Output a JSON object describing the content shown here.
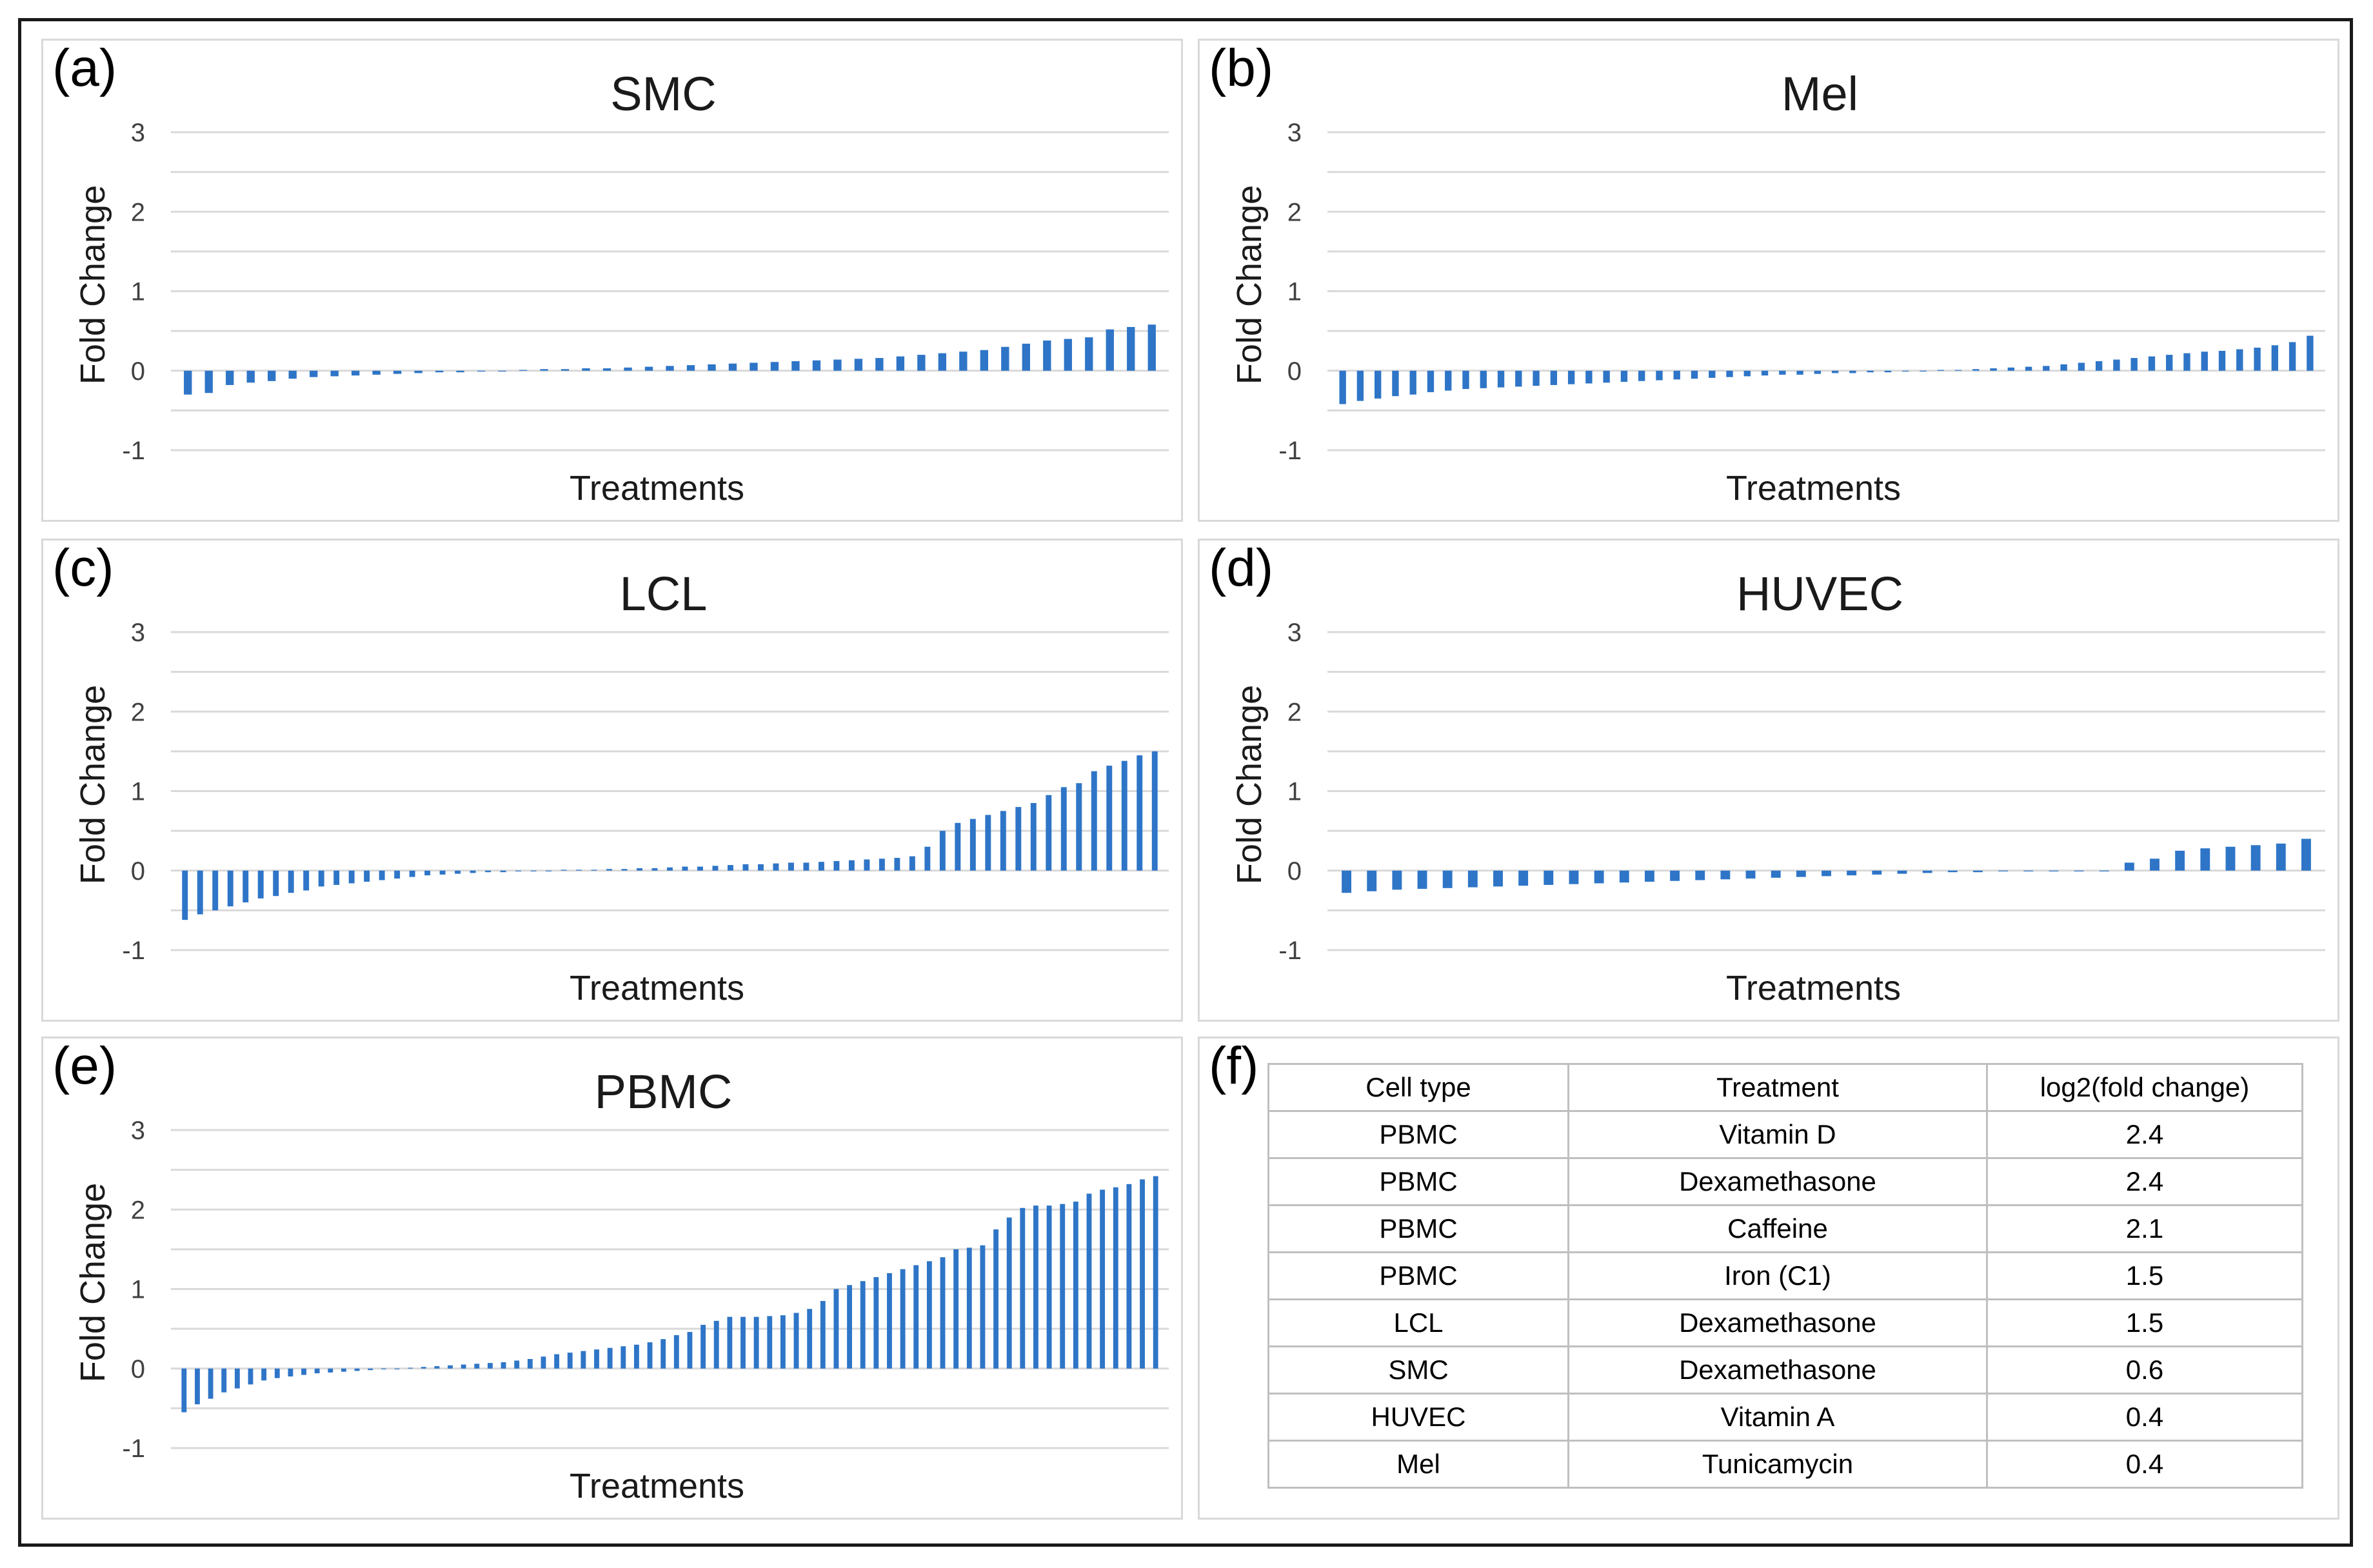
{
  "chart_data": [
    {
      "panel_label": "(a)",
      "type": "bar",
      "title": "SMC",
      "xlabel": "Treatments",
      "ylabel": "Fold Change",
      "ylim": [
        -1,
        3
      ],
      "yticks": [
        "3",
        "2",
        "1",
        "0",
        "-1"
      ],
      "grid": true,
      "color": "#2e75c7",
      "values": [
        -0.3,
        -0.28,
        -0.18,
        -0.15,
        -0.13,
        -0.1,
        -0.08,
        -0.07,
        -0.06,
        -0.05,
        -0.04,
        -0.03,
        -0.02,
        -0.02,
        -0.01,
        -0.01,
        0.01,
        0.02,
        0.02,
        0.03,
        0.03,
        0.04,
        0.05,
        0.06,
        0.07,
        0.08,
        0.09,
        0.1,
        0.11,
        0.12,
        0.13,
        0.14,
        0.15,
        0.16,
        0.18,
        0.2,
        0.22,
        0.24,
        0.26,
        0.3,
        0.34,
        0.38,
        0.4,
        0.42,
        0.52,
        0.55,
        0.58
      ]
    },
    {
      "panel_label": "(b)",
      "type": "bar",
      "title": "Mel",
      "xlabel": "Treatments",
      "ylabel": "Fold Change",
      "ylim": [
        -1,
        3
      ],
      "yticks": [
        "3",
        "2",
        "1",
        "0",
        "-1"
      ],
      "grid": true,
      "color": "#2e75c7",
      "values": [
        -0.42,
        -0.38,
        -0.35,
        -0.32,
        -0.3,
        -0.27,
        -0.25,
        -0.23,
        -0.22,
        -0.21,
        -0.2,
        -0.19,
        -0.18,
        -0.17,
        -0.16,
        -0.15,
        -0.14,
        -0.13,
        -0.12,
        -0.11,
        -0.1,
        -0.09,
        -0.08,
        -0.07,
        -0.06,
        -0.05,
        -0.05,
        -0.04,
        -0.03,
        -0.03,
        -0.02,
        -0.02,
        -0.01,
        -0.01,
        0.01,
        0.01,
        0.02,
        0.03,
        0.04,
        0.05,
        0.06,
        0.08,
        0.1,
        0.12,
        0.14,
        0.16,
        0.18,
        0.2,
        0.22,
        0.24,
        0.25,
        0.27,
        0.29,
        0.32,
        0.36,
        0.44
      ]
    },
    {
      "panel_label": "(c)",
      "type": "bar",
      "title": "LCL",
      "xlabel": "Treatments",
      "ylabel": "Fold Change",
      "ylim": [
        -1,
        3
      ],
      "yticks": [
        "3",
        "2",
        "1",
        "0",
        "-1"
      ],
      "grid": true,
      "color": "#2e75c7",
      "values": [
        -0.62,
        -0.55,
        -0.5,
        -0.45,
        -0.4,
        -0.35,
        -0.32,
        -0.28,
        -0.25,
        -0.2,
        -0.18,
        -0.16,
        -0.14,
        -0.12,
        -0.1,
        -0.08,
        -0.06,
        -0.05,
        -0.04,
        -0.03,
        -0.02,
        -0.02,
        -0.01,
        -0.01,
        -0.01,
        0.01,
        0.01,
        0.01,
        0.02,
        0.02,
        0.03,
        0.03,
        0.04,
        0.05,
        0.05,
        0.06,
        0.07,
        0.08,
        0.08,
        0.09,
        0.1,
        0.1,
        0.11,
        0.12,
        0.13,
        0.14,
        0.15,
        0.16,
        0.18,
        0.3,
        0.5,
        0.6,
        0.65,
        0.7,
        0.75,
        0.8,
        0.85,
        0.95,
        1.05,
        1.1,
        1.25,
        1.32,
        1.38,
        1.45,
        1.5
      ]
    },
    {
      "panel_label": "(d)",
      "type": "bar",
      "title": "HUVEC",
      "xlabel": "Treatments",
      "ylabel": "Fold Change",
      "ylim": [
        -1,
        3
      ],
      "yticks": [
        "3",
        "2",
        "1",
        "0",
        "-1"
      ],
      "grid": true,
      "color": "#2e75c7",
      "values": [
        -0.28,
        -0.26,
        -0.24,
        -0.23,
        -0.22,
        -0.21,
        -0.2,
        -0.19,
        -0.18,
        -0.17,
        -0.16,
        -0.15,
        -0.14,
        -0.13,
        -0.12,
        -0.11,
        -0.1,
        -0.09,
        -0.08,
        -0.07,
        -0.06,
        -0.05,
        -0.04,
        -0.03,
        -0.02,
        -0.02,
        -0.01,
        -0.01,
        -0.01,
        -0.01,
        -0.01,
        0.1,
        0.15,
        0.25,
        0.28,
        0.3,
        0.32,
        0.34,
        0.4
      ]
    },
    {
      "panel_label": "(e)",
      "type": "bar",
      "title": "PBMC",
      "xlabel": "Treatments",
      "ylabel": "Fold Change",
      "ylim": [
        -1,
        3
      ],
      "yticks": [
        "3",
        "2",
        "1",
        "0",
        "-1"
      ],
      "grid": true,
      "color": "#2e75c7",
      "values": [
        -0.55,
        -0.45,
        -0.38,
        -0.3,
        -0.25,
        -0.2,
        -0.15,
        -0.12,
        -0.1,
        -0.08,
        -0.06,
        -0.05,
        -0.04,
        -0.03,
        -0.02,
        -0.01,
        -0.01,
        0.01,
        0.02,
        0.03,
        0.04,
        0.05,
        0.06,
        0.07,
        0.08,
        0.1,
        0.12,
        0.15,
        0.18,
        0.2,
        0.22,
        0.24,
        0.26,
        0.28,
        0.3,
        0.33,
        0.37,
        0.42,
        0.46,
        0.55,
        0.6,
        0.65,
        0.65,
        0.65,
        0.66,
        0.67,
        0.7,
        0.75,
        0.85,
        1.0,
        1.05,
        1.1,
        1.15,
        1.2,
        1.25,
        1.3,
        1.35,
        1.4,
        1.5,
        1.52,
        1.55,
        1.75,
        1.9,
        2.02,
        2.05,
        2.05,
        2.07,
        2.1,
        2.2,
        2.25,
        2.28,
        2.32,
        2.38,
        2.42
      ]
    }
  ],
  "table": {
    "panel_label": "(f)",
    "headers": [
      "Cell type",
      "Treatment",
      "log2(fold change)"
    ],
    "rows": [
      [
        "PBMC",
        "Vitamin D",
        "2.4"
      ],
      [
        "PBMC",
        "Dexamethasone",
        "2.4"
      ],
      [
        "PBMC",
        "Caffeine",
        "2.1"
      ],
      [
        "PBMC",
        "Iron (C1)",
        "1.5"
      ],
      [
        "LCL",
        "Dexamethasone",
        "1.5"
      ],
      [
        "SMC",
        "Dexamethasone",
        "0.6"
      ],
      [
        "HUVEC",
        "Vitamin A",
        "0.4"
      ],
      [
        "Mel",
        "Tunicamycin",
        "0.4"
      ]
    ]
  }
}
